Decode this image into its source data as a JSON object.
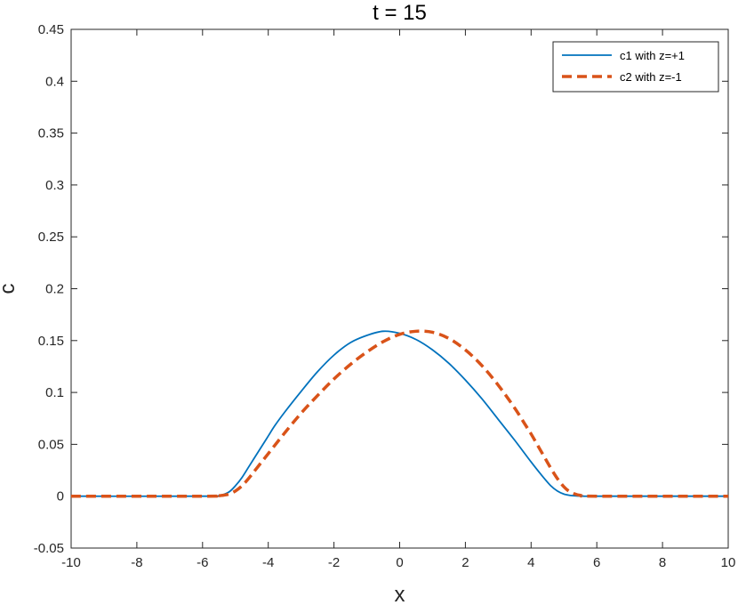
{
  "chart_data": {
    "type": "line",
    "title": "t = 15",
    "xlabel": "x",
    "ylabel": "c",
    "xlim": [
      -10,
      10
    ],
    "ylim": [
      -0.05,
      0.45
    ],
    "xticks": [
      "-10",
      "-8",
      "-6",
      "-4",
      "-2",
      "0",
      "2",
      "4",
      "6",
      "8",
      "10"
    ],
    "yticks": [
      "-0.05",
      "0",
      "0.05",
      "0.1",
      "0.15",
      "0.2",
      "0.25",
      "0.3",
      "0.35",
      "0.4",
      "0.45"
    ],
    "grid": false,
    "legend_position": "top-right",
    "series": [
      {
        "name": "c1 with z=+1",
        "style": "solid",
        "color": "#0072BD",
        "x": [
          -10,
          -6,
          -5.5,
          -5.2,
          -5.0,
          -4.8,
          -4.6,
          -4.4,
          -4.2,
          -4.0,
          -3.8,
          -3.5,
          -3.0,
          -2.5,
          -2.0,
          -1.5,
          -1.0,
          -0.5,
          0.0,
          0.5,
          1.0,
          1.5,
          2.0,
          2.5,
          3.0,
          3.5,
          4.0,
          4.3,
          4.6,
          4.8,
          5.0,
          5.2,
          5.4,
          5.6,
          6.0,
          10
        ],
        "y": [
          0,
          0,
          0.0005,
          0.004,
          0.01,
          0.018,
          0.028,
          0.038,
          0.048,
          0.058,
          0.068,
          0.081,
          0.101,
          0.12,
          0.136,
          0.148,
          0.155,
          0.159,
          0.157,
          0.151,
          0.141,
          0.128,
          0.112,
          0.094,
          0.074,
          0.054,
          0.033,
          0.021,
          0.01,
          0.005,
          0.002,
          0.0007,
          0.0002,
          0,
          0,
          0
        ]
      },
      {
        "name": "c2 with z=-1",
        "style": "dashed",
        "color": "#D95319",
        "x": [
          -10,
          -6,
          -5.6,
          -5.4,
          -5.2,
          -5.0,
          -4.8,
          -4.6,
          -4.4,
          -4.0,
          -3.5,
          -3.0,
          -2.5,
          -2.0,
          -1.5,
          -1.0,
          -0.5,
          0.0,
          0.5,
          1.0,
          1.5,
          2.0,
          2.5,
          3.0,
          3.5,
          3.8,
          4.0,
          4.2,
          4.4,
          4.6,
          4.8,
          5.0,
          5.2,
          5.5,
          6.0,
          10
        ],
        "y": [
          0,
          0,
          0.0002,
          0.0008,
          0.002,
          0.005,
          0.01,
          0.017,
          0.025,
          0.041,
          0.061,
          0.08,
          0.097,
          0.113,
          0.127,
          0.139,
          0.149,
          0.156,
          0.159,
          0.158,
          0.152,
          0.141,
          0.126,
          0.107,
          0.085,
          0.07,
          0.06,
          0.049,
          0.038,
          0.027,
          0.017,
          0.009,
          0.004,
          0.0008,
          0,
          0
        ]
      }
    ]
  }
}
